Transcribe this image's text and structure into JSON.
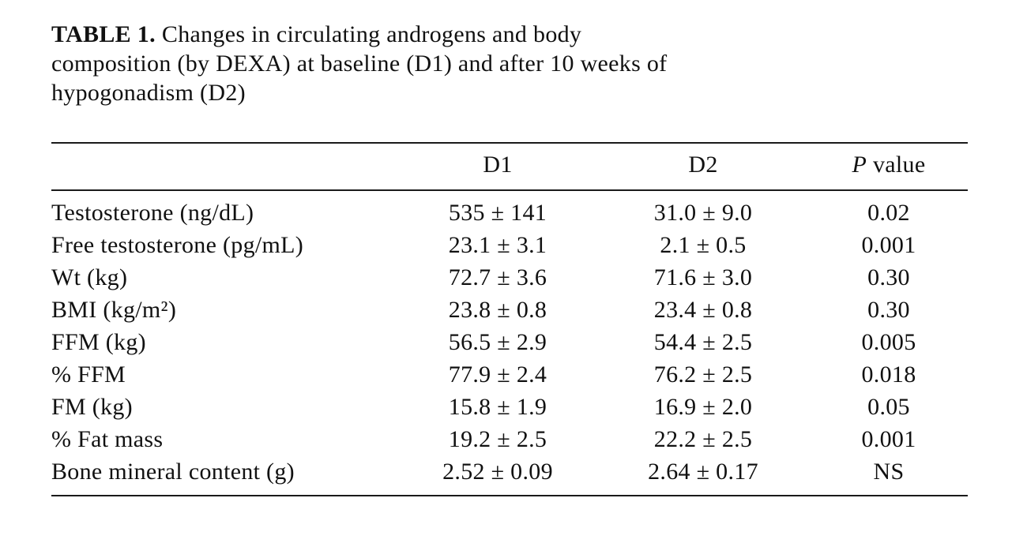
{
  "title": {
    "label": "TABLE 1.",
    "line1_rest": "Changes in circulating androgens and body",
    "line2": "composition (by DEXA) at baseline (D1) and after 10 weeks of",
    "line3": "hypogonadism (D2)"
  },
  "table": {
    "header": {
      "label": "",
      "d1": "D1",
      "d2": "D2",
      "p_italic": "P",
      "p_rest": "value"
    },
    "rows": [
      {
        "label": "Testosterone (ng/dL)",
        "d1": "535 ± 141",
        "d2": "31.0 ± 9.0",
        "p": "0.02"
      },
      {
        "label": "Free testosterone (pg/mL)",
        "d1": "23.1 ± 3.1",
        "d2": "2.1 ± 0.5",
        "p": "0.001"
      },
      {
        "label": "Wt (kg)",
        "d1": "72.7 ± 3.6",
        "d2": "71.6 ± 3.0",
        "p": "0.30"
      },
      {
        "label": "BMI (kg/m²)",
        "d1": "23.8 ± 0.8",
        "d2": "23.4 ± 0.8",
        "p": "0.30"
      },
      {
        "label": "FFM (kg)",
        "d1": "56.5 ± 2.9",
        "d2": "54.4 ± 2.5",
        "p": "0.005"
      },
      {
        "label": "% FFM",
        "d1": "77.9 ± 2.4",
        "d2": "76.2 ± 2.5",
        "p": "0.018"
      },
      {
        "label": "FM (kg)",
        "d1": "15.8 ± 1.9",
        "d2": "16.9 ± 2.0",
        "p": "0.05"
      },
      {
        "label": "% Fat mass",
        "d1": "19.2 ± 2.5",
        "d2": "22.2 ± 2.5",
        "p": "0.001"
      },
      {
        "label": "Bone mineral content (g)",
        "d1": "2.52 ± 0.09",
        "d2": "2.64 ± 0.17",
        "p": "NS"
      }
    ]
  }
}
